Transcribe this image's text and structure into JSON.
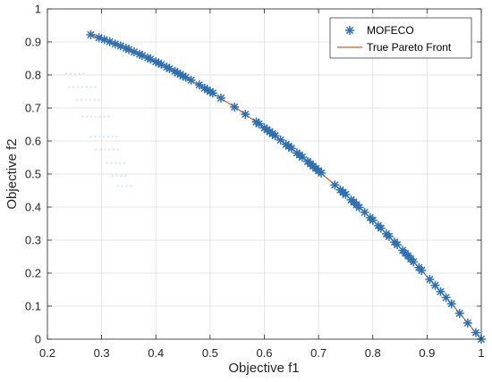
{
  "chart_data": {
    "type": "scatter",
    "title": "",
    "xlabel": "Objective f1",
    "ylabel": "Objective f2",
    "xlim": [
      0.2,
      1.0
    ],
    "ylim": [
      0,
      1.0
    ],
    "xticks": [
      "0.2",
      "0.3",
      "0.4",
      "0.5",
      "0.6",
      "0.7",
      "0.8",
      "0.9",
      "1"
    ],
    "yticks": [
      "0",
      "0.1",
      "0.2",
      "0.3",
      "0.4",
      "0.5",
      "0.6",
      "0.7",
      "0.8",
      "0.9",
      "1"
    ],
    "grid": true,
    "legend_position": "top-right",
    "colors": {
      "mofeco": "#2e6fb0",
      "true_front": "#c8622a"
    },
    "series": [
      {
        "name": "MOFECO",
        "marker": "asterisk",
        "x": [
          0.28,
          0.295,
          0.305,
          0.315,
          0.325,
          0.335,
          0.345,
          0.35,
          0.36,
          0.37,
          0.375,
          0.385,
          0.39,
          0.4,
          0.405,
          0.41,
          0.42,
          0.425,
          0.435,
          0.44,
          0.445,
          0.45,
          0.455,
          0.465,
          0.48,
          0.49,
          0.495,
          0.5,
          0.505,
          0.52,
          0.545,
          0.565,
          0.585,
          0.59,
          0.6,
          0.605,
          0.61,
          0.615,
          0.62,
          0.63,
          0.64,
          0.645,
          0.65,
          0.66,
          0.665,
          0.67,
          0.68,
          0.685,
          0.69,
          0.695,
          0.7,
          0.705,
          0.73,
          0.74,
          0.745,
          0.75,
          0.76,
          0.765,
          0.77,
          0.775,
          0.785,
          0.795,
          0.8,
          0.81,
          0.815,
          0.825,
          0.83,
          0.84,
          0.845,
          0.855,
          0.86,
          0.865,
          0.87,
          0.875,
          0.885,
          0.89,
          0.905,
          0.915,
          0.925,
          0.935,
          0.945,
          0.96,
          0.975,
          0.99,
          1.0
        ],
        "y": [
          0.922,
          0.913,
          0.907,
          0.901,
          0.894,
          0.888,
          0.881,
          0.877,
          0.87,
          0.863,
          0.859,
          0.852,
          0.848,
          0.84,
          0.836,
          0.832,
          0.824,
          0.819,
          0.811,
          0.806,
          0.802,
          0.797,
          0.793,
          0.784,
          0.77,
          0.76,
          0.755,
          0.75,
          0.745,
          0.73,
          0.703,
          0.681,
          0.658,
          0.652,
          0.64,
          0.634,
          0.628,
          0.622,
          0.616,
          0.603,
          0.59,
          0.584,
          0.578,
          0.564,
          0.558,
          0.551,
          0.538,
          0.531,
          0.524,
          0.517,
          0.51,
          0.503,
          0.467,
          0.452,
          0.445,
          0.438,
          0.422,
          0.415,
          0.407,
          0.399,
          0.384,
          0.368,
          0.36,
          0.344,
          0.336,
          0.319,
          0.311,
          0.294,
          0.286,
          0.269,
          0.26,
          0.252,
          0.243,
          0.234,
          0.217,
          0.208,
          0.181,
          0.163,
          0.144,
          0.126,
          0.107,
          0.078,
          0.049,
          0.02,
          0.0
        ]
      },
      {
        "name": "True Pareto Front",
        "type": "line",
        "x": [
          0.28,
          0.3,
          0.35,
          0.4,
          0.45,
          0.5,
          0.55,
          0.6,
          0.65,
          0.7,
          0.75,
          0.8,
          0.85,
          0.9,
          0.95,
          1.0
        ],
        "y": [
          0.922,
          0.909,
          0.877,
          0.84,
          0.797,
          0.75,
          0.698,
          0.64,
          0.578,
          0.51,
          0.438,
          0.36,
          0.278,
          0.19,
          0.098,
          0.0
        ]
      }
    ]
  }
}
